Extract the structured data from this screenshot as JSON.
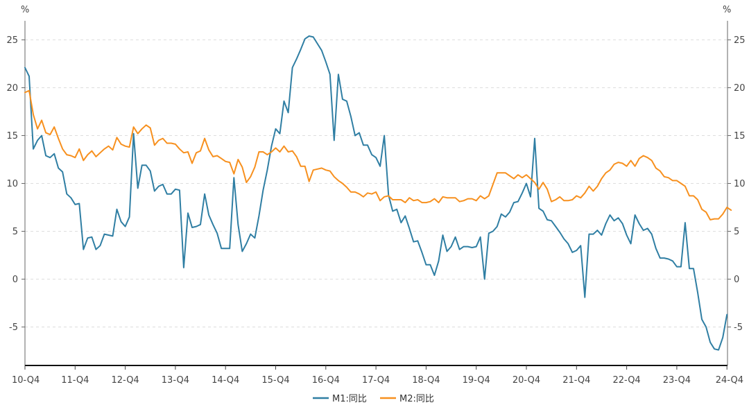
{
  "chart_data": {
    "type": "line",
    "left_unit": "%",
    "right_unit": "%",
    "ylim": [
      -9,
      27
    ],
    "yticks": [
      -5,
      0,
      5,
      10,
      15,
      20,
      25
    ],
    "grid": "horizontal dashed",
    "legend": "bottom-center",
    "x_tick_labels": [
      "10-Q4",
      "11-Q4",
      "12-Q4",
      "13-Q4",
      "14-Q4",
      "15-Q4",
      "16-Q4",
      "17-Q4",
      "18-Q4",
      "19-Q4",
      "20-Q4",
      "21-Q4",
      "22-Q4",
      "23-Q4",
      "24-Q4"
    ],
    "series": [
      {
        "name": "M1:同比",
        "color": "#2f7ea3",
        "values": [
          22.1,
          21.2,
          13.6,
          14.5,
          15.0,
          12.9,
          12.7,
          13.1,
          11.6,
          11.2,
          8.9,
          8.5,
          7.8,
          7.9,
          3.1,
          4.3,
          4.4,
          3.1,
          3.5,
          4.7,
          4.6,
          4.5,
          7.3,
          6.0,
          5.5,
          6.5,
          15.2,
          9.5,
          11.9,
          11.9,
          11.3,
          9.2,
          9.7,
          9.9,
          8.9,
          8.9,
          9.4,
          9.3,
          1.2,
          6.9,
          5.4,
          5.5,
          5.7,
          8.9,
          6.7,
          5.7,
          4.8,
          3.2,
          3.2,
          3.2,
          10.6,
          5.7,
          2.9,
          3.7,
          4.7,
          4.3,
          6.6,
          9.3,
          11.4,
          13.9,
          15.7,
          15.2,
          18.6,
          17.4,
          22.1,
          23.0,
          24.0,
          25.1,
          25.4,
          25.3,
          24.6,
          23.9,
          22.7,
          21.4,
          14.5,
          21.4,
          18.8,
          18.6,
          17.0,
          15.0,
          15.3,
          14.0,
          14.0,
          13.0,
          12.7,
          11.8,
          15.0,
          8.8,
          7.1,
          7.3,
          5.9,
          6.6,
          5.3,
          3.9,
          4.0,
          2.8,
          1.5,
          1.5,
          0.4,
          1.9,
          4.6,
          2.9,
          3.4,
          4.4,
          3.1,
          3.4,
          3.4,
          3.3,
          3.4,
          4.4,
          0.0,
          4.8,
          5.0,
          5.5,
          6.8,
          6.5,
          7.0,
          8.0,
          8.1,
          9.0,
          10.0,
          8.6,
          14.7,
          7.4,
          7.1,
          6.2,
          6.1,
          5.5,
          4.9,
          4.2,
          3.7,
          2.8,
          3.0,
          3.5,
          -1.9,
          4.7,
          4.7,
          5.1,
          4.6,
          5.8,
          6.7,
          6.1,
          6.4,
          5.8,
          4.6,
          3.7,
          6.7,
          5.8,
          5.1,
          5.3,
          4.7,
          3.2,
          2.2,
          2.2,
          2.1,
          1.9,
          1.3,
          1.3,
          5.9,
          1.1,
          1.1,
          -1.4,
          -4.2,
          -5.0,
          -6.6,
          -7.3,
          -7.4,
          -6.1,
          -3.7
        ]
      },
      {
        "name": "M2:同比",
        "color": "#f7901e",
        "values": [
          19.5,
          19.7,
          17.2,
          15.7,
          16.6,
          15.3,
          15.1,
          15.9,
          14.7,
          13.6,
          13.0,
          12.9,
          12.7,
          13.6,
          12.4,
          13.0,
          13.4,
          12.8,
          13.2,
          13.6,
          13.9,
          13.5,
          14.8,
          14.1,
          13.9,
          13.8,
          15.9,
          15.2,
          15.7,
          16.1,
          15.8,
          14.0,
          14.5,
          14.7,
          14.2,
          14.2,
          14.1,
          13.6,
          13.2,
          13.3,
          12.1,
          13.2,
          13.4,
          14.7,
          13.5,
          12.8,
          12.9,
          12.6,
          12.3,
          12.2,
          11.0,
          12.5,
          11.7,
          10.1,
          10.7,
          11.7,
          13.3,
          13.3,
          13.0,
          13.3,
          13.7,
          13.3,
          13.9,
          13.3,
          13.4,
          12.8,
          11.8,
          11.8,
          10.2,
          11.4,
          11.5,
          11.6,
          11.4,
          11.3,
          10.7,
          10.3,
          10.0,
          9.6,
          9.1,
          9.1,
          8.9,
          8.6,
          9.0,
          8.9,
          9.1,
          8.2,
          8.6,
          8.7,
          8.3,
          8.3,
          8.3,
          8.0,
          8.5,
          8.2,
          8.3,
          8.0,
          8.0,
          8.1,
          8.4,
          8.0,
          8.6,
          8.5,
          8.5,
          8.5,
          8.1,
          8.2,
          8.4,
          8.4,
          8.2,
          8.7,
          8.4,
          8.7,
          9.9,
          11.1,
          11.1,
          11.1,
          10.8,
          10.5,
          10.9,
          10.6,
          10.9,
          10.5,
          10.1,
          9.4,
          10.1,
          9.4,
          8.1,
          8.3,
          8.6,
          8.2,
          8.2,
          8.3,
          8.7,
          8.5,
          9.0,
          9.7,
          9.2,
          9.7,
          10.5,
          11.1,
          11.4,
          12.0,
          12.2,
          12.1,
          11.8,
          12.4,
          11.8,
          12.6,
          12.9,
          12.7,
          12.4,
          11.6,
          11.3,
          10.7,
          10.6,
          10.3,
          10.3,
          10.0,
          9.7,
          8.7,
          8.7,
          8.3,
          7.3,
          7.0,
          6.2,
          6.3,
          6.3,
          6.8,
          7.5,
          7.2
        ]
      }
    ]
  }
}
